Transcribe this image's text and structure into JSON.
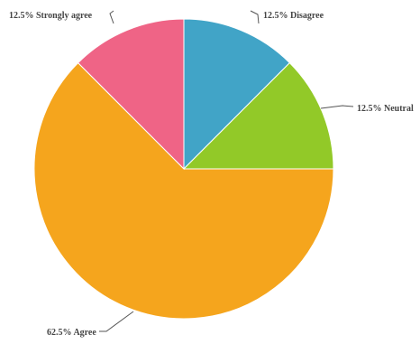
{
  "chart_data": {
    "type": "pie",
    "title": "",
    "slices": [
      {
        "label": "Disagree",
        "value": 12.5,
        "display": "12.5% Disagree",
        "color": "#41A4C7"
      },
      {
        "label": "Neutral",
        "value": 12.5,
        "display": "12.5% Neutral",
        "color": "#92C928"
      },
      {
        "label": "Agree",
        "value": 62.5,
        "display": "62.5% Agree",
        "color": "#F5A51D"
      },
      {
        "label": "Strongly agree",
        "value": 12.5,
        "display": "12.5% Strongly agree",
        "color": "#EF6486"
      }
    ],
    "legend": "none",
    "start_angle": "12 o'clock, clockwise"
  }
}
